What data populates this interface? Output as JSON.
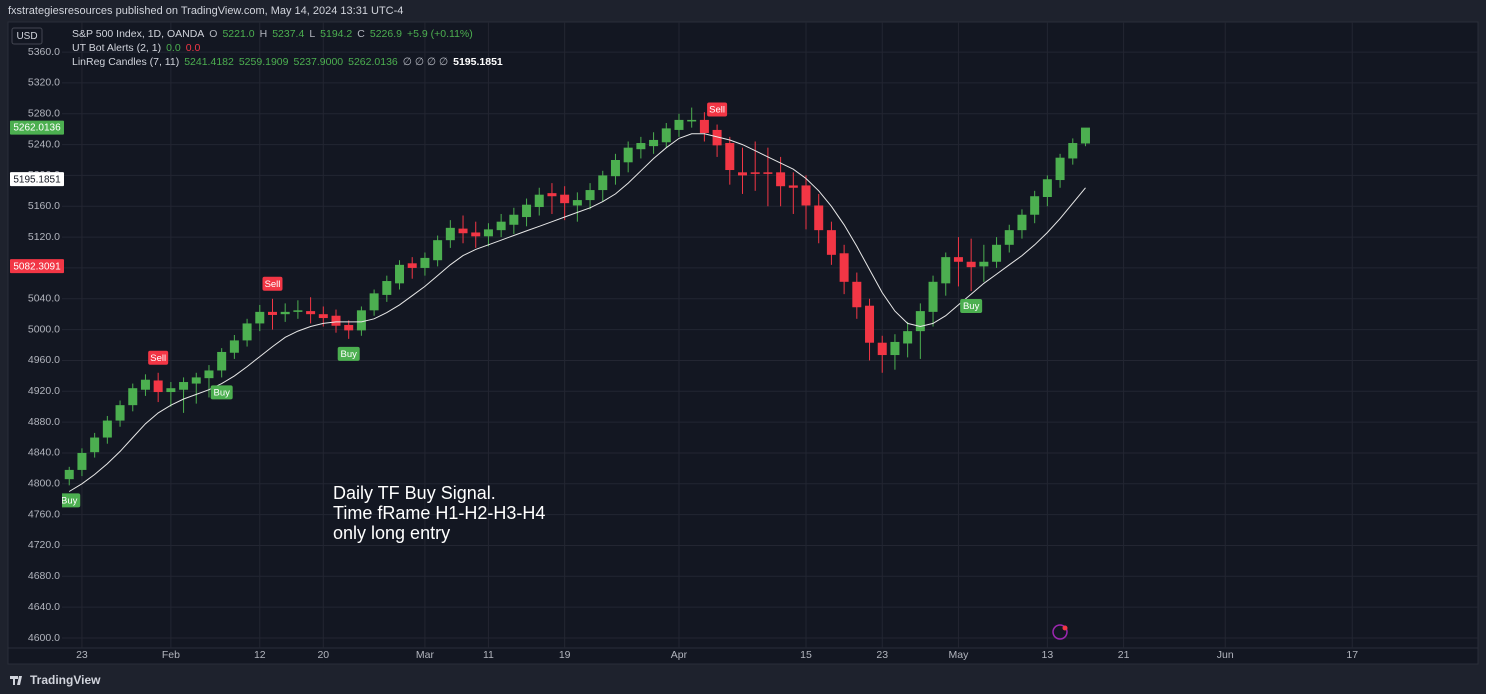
{
  "header": {
    "publisher": "fxstrategiesresources published on TradingView.com, May 14, 2024 13:31 UTC-4"
  },
  "legend": [
    {
      "title": "S&P 500 Index, 1D, OANDA",
      "items": [
        {
          "text": "O",
          "color": "#b2b5be"
        },
        {
          "text": "5221.0",
          "color": "#4caf50"
        },
        {
          "text": "H",
          "color": "#b2b5be"
        },
        {
          "text": "5237.4",
          "color": "#4caf50"
        },
        {
          "text": "L",
          "color": "#b2b5be"
        },
        {
          "text": "5194.2",
          "color": "#4caf50"
        },
        {
          "text": "C",
          "color": "#b2b5be"
        },
        {
          "text": "5226.9",
          "color": "#4caf50"
        },
        {
          "text": "+5.9 (+0.11%)",
          "color": "#4caf50"
        }
      ]
    },
    {
      "title": "UT Bot Alerts (2, 1)",
      "items": [
        {
          "text": "0.0",
          "color": "#4caf50"
        },
        {
          "text": "0.0",
          "color": "#f23645"
        }
      ]
    },
    {
      "title": "LinReg Candles (7, 11)",
      "items": [
        {
          "text": "5241.4182",
          "color": "#4caf50"
        },
        {
          "text": "5259.1909",
          "color": "#4caf50"
        },
        {
          "text": "5237.9000",
          "color": "#4caf50"
        },
        {
          "text": "5262.0136",
          "color": "#4caf50"
        },
        {
          "text": "∅ ∅ ∅ ∅",
          "color": "#b2b5be"
        },
        {
          "text": "5195.1851",
          "color": "#ffffff"
        }
      ]
    }
  ],
  "chart_data": {
    "type": "candlestick",
    "currency": "USD",
    "x": [
      0,
      1,
      2,
      3,
      4,
      5,
      6,
      7,
      8,
      9,
      10,
      11,
      12,
      13,
      14,
      15,
      16,
      17,
      18,
      19,
      20,
      21,
      22,
      23,
      24,
      25,
      26,
      27,
      28,
      29,
      30,
      31,
      32,
      33,
      34,
      35,
      36,
      37,
      38,
      39,
      40,
      41,
      42,
      43,
      44,
      45,
      46,
      47,
      48,
      49,
      50,
      51,
      52,
      53,
      54,
      55,
      56,
      57,
      58,
      59,
      60,
      61,
      62,
      63,
      64,
      65,
      66,
      67,
      68,
      69,
      70,
      71,
      72,
      73,
      74,
      75,
      76,
      77,
      78,
      79,
      80
    ],
    "open": [
      4806,
      4818,
      4841,
      4860,
      4882,
      4902,
      4922,
      4934,
      4919,
      4922,
      4930,
      4937,
      4947,
      4970,
      4986,
      5008,
      5023,
      5020,
      5023,
      5024,
      5020,
      5018,
      5006,
      4999,
      5025,
      5045,
      5060,
      5086,
      5080,
      5090,
      5116,
      5131,
      5126,
      5121,
      5129,
      5136,
      5146,
      5159,
      5177,
      5175,
      5161,
      5168,
      5181,
      5199,
      5217,
      5234,
      5238,
      5243,
      5259,
      5270,
      5272,
      5259,
      5242,
      5204,
      5204,
      5204,
      5204,
      5187,
      5187,
      5161,
      5129,
      5099,
      5062,
      5031,
      4983,
      4967,
      4982,
      4998,
      5023,
      5060,
      5094,
      5088,
      5082,
      5088,
      5110,
      5129,
      5149,
      5172,
      5194,
      5222,
      5241.4182
    ],
    "high": [
      4822,
      4846,
      4866,
      4888,
      4908,
      4930,
      4942,
      4944,
      4932,
      4938,
      4944,
      4954,
      4976,
      4993,
      5014,
      5032,
      5040,
      5034,
      5038,
      5042,
      5030,
      5026,
      5012,
      5030,
      5052,
      5070,
      5090,
      5094,
      5100,
      5122,
      5142,
      5148,
      5140,
      5138,
      5150,
      5158,
      5170,
      5184,
      5190,
      5186,
      5178,
      5190,
      5206,
      5228,
      5244,
      5250,
      5256,
      5268,
      5280,
      5288,
      5282,
      5266,
      5250,
      5236,
      5244,
      5236,
      5224,
      5204,
      5200,
      5176,
      5140,
      5110,
      5074,
      5040,
      4992,
      4994,
      5010,
      5034,
      5070,
      5100,
      5120,
      5118,
      5110,
      5120,
      5136,
      5156,
      5180,
      5200,
      5228,
      5248,
      5259.1909
    ],
    "low": [
      4798,
      4810,
      4834,
      4852,
      4874,
      4894,
      4914,
      4906,
      4900,
      4892,
      4904,
      4912,
      4938,
      4962,
      4978,
      4998,
      5000,
      5010,
      5014,
      5008,
      5004,
      4996,
      4988,
      4992,
      5018,
      5036,
      5052,
      5066,
      5070,
      5082,
      5106,
      5112,
      5106,
      5108,
      5120,
      5124,
      5134,
      5148,
      5150,
      5142,
      5140,
      5156,
      5166,
      5188,
      5204,
      5222,
      5228,
      5236,
      5250,
      5262,
      5244,
      5224,
      5188,
      5176,
      5180,
      5160,
      5160,
      5150,
      5130,
      5112,
      5084,
      5046,
      5014,
      4960,
      4944,
      4948,
      4964,
      4962,
      5004,
      5044,
      5056,
      5050,
      5062,
      5080,
      5100,
      5118,
      5138,
      5160,
      5184,
      5214,
      5237.9
    ],
    "close": [
      4818,
      4840,
      4860,
      4882,
      4902,
      4924,
      4935,
      4919,
      4924,
      4932,
      4938,
      4947,
      4971,
      4986,
      5008,
      5023,
      5019,
      5023,
      5025,
      5020,
      5015,
      5005,
      4999,
      5025,
      5047,
      5063,
      5084,
      5080,
      5093,
      5116,
      5132,
      5125,
      5121,
      5130,
      5140,
      5149,
      5162,
      5175,
      5173,
      5164,
      5168,
      5181,
      5200,
      5220,
      5236,
      5242,
      5246,
      5261,
      5272,
      5272,
      5255,
      5239,
      5207,
      5200,
      5202,
      5202,
      5186,
      5184,
      5161,
      5129,
      5097,
      5062,
      5029,
      4983,
      4967,
      4984,
      4998,
      5024,
      5062,
      5094,
      5088,
      5081,
      5088,
      5110,
      5129,
      5149,
      5173,
      5195,
      5223,
      5242,
      5262.0136
    ],
    "up_color": "#4caf50",
    "down_color": "#f23645",
    "line": {
      "color": "#e8e8e8",
      "values": [
        4790,
        4800,
        4812,
        4826,
        4842,
        4860,
        4878,
        4892,
        4902,
        4910,
        4916,
        4922,
        4930,
        4940,
        4952,
        4965,
        4978,
        4990,
        4998,
        5004,
        5008,
        5010,
        5010,
        5010,
        5014,
        5022,
        5032,
        5044,
        5056,
        5070,
        5084,
        5096,
        5104,
        5110,
        5116,
        5122,
        5128,
        5134,
        5140,
        5146,
        5152,
        5158,
        5166,
        5176,
        5190,
        5206,
        5222,
        5236,
        5248,
        5254,
        5254,
        5250,
        5246,
        5240,
        5232,
        5224,
        5216,
        5208,
        5196,
        5180,
        5160,
        5136,
        5108,
        5078,
        5048,
        5024,
        5008,
        5004,
        5008,
        5018,
        5032,
        5046,
        5060,
        5072,
        5084,
        5096,
        5110,
        5126,
        5144,
        5164,
        5184
      ]
    },
    "signals": [
      {
        "index": 0,
        "label": "Buy"
      },
      {
        "index": 7,
        "label": "Sell"
      },
      {
        "index": 12,
        "label": "Buy"
      },
      {
        "index": 16,
        "label": "Sell"
      },
      {
        "index": 22,
        "label": "Buy"
      },
      {
        "index": 51,
        "label": "Sell"
      },
      {
        "index": 71,
        "label": "Buy"
      }
    ],
    "price_labels": [
      {
        "value": 5262.0136,
        "color": "#4caf50",
        "text_color": "#ffffff"
      },
      {
        "value": 5195.1851,
        "color": "#ffffff",
        "text_color": "#131722"
      },
      {
        "value": 5082.3091,
        "color": "#f23645",
        "text_color": "#ffffff"
      }
    ],
    "annotation": [
      "Daily TF Buy Signal.",
      "Time fRame H1-H2-H3-H4",
      "only long entry"
    ],
    "xlim": [
      -0.57,
      110.9
    ],
    "xticks": [
      {
        "value": 1,
        "label": "23"
      },
      {
        "value": 8,
        "label": "Feb"
      },
      {
        "value": 15,
        "label": "12"
      },
      {
        "value": 20,
        "label": "20"
      },
      {
        "value": 28,
        "label": "Mar"
      },
      {
        "value": 33,
        "label": "11"
      },
      {
        "value": 39,
        "label": "19"
      },
      {
        "value": 48,
        "label": "Apr"
      },
      {
        "value": 58,
        "label": "15"
      },
      {
        "value": 64,
        "label": "23"
      },
      {
        "value": 70,
        "label": "May"
      },
      {
        "value": 77,
        "label": "13"
      },
      {
        "value": 83,
        "label": "21"
      },
      {
        "value": 91,
        "label": "Jun"
      },
      {
        "value": 101,
        "label": "17"
      }
    ],
    "ylim": [
      4587,
      5399
    ],
    "yticks": [
      {
        "value": 4600,
        "label": "4600.0"
      },
      {
        "value": 4640,
        "label": "4640.0"
      },
      {
        "value": 4680,
        "label": "4680.0"
      },
      {
        "value": 4720,
        "label": "4720.0"
      },
      {
        "value": 4760,
        "label": "4760.0"
      },
      {
        "value": 4800,
        "label": "4800.0"
      },
      {
        "value": 4840,
        "label": "4840.0"
      },
      {
        "value": 4880,
        "label": "4880.0"
      },
      {
        "value": 4920,
        "label": "4920.0"
      },
      {
        "value": 4960,
        "label": "4960.0"
      },
      {
        "value": 5000,
        "label": "5000.0"
      },
      {
        "value": 5040,
        "label": "5040.0"
      },
      {
        "value": 5080,
        "label": "5080.0"
      },
      {
        "value": 5120,
        "label": "5120.0"
      },
      {
        "value": 5160,
        "label": "5160.0"
      },
      {
        "value": 5200,
        "label": "5200.0"
      },
      {
        "value": 5240,
        "label": "5240.0"
      },
      {
        "value": 5280,
        "label": "5280.0"
      },
      {
        "value": 5320,
        "label": "5320.0"
      },
      {
        "value": 5360,
        "label": "5360.0"
      }
    ],
    "grid": true
  },
  "footer": {
    "brand": "TradingView"
  }
}
